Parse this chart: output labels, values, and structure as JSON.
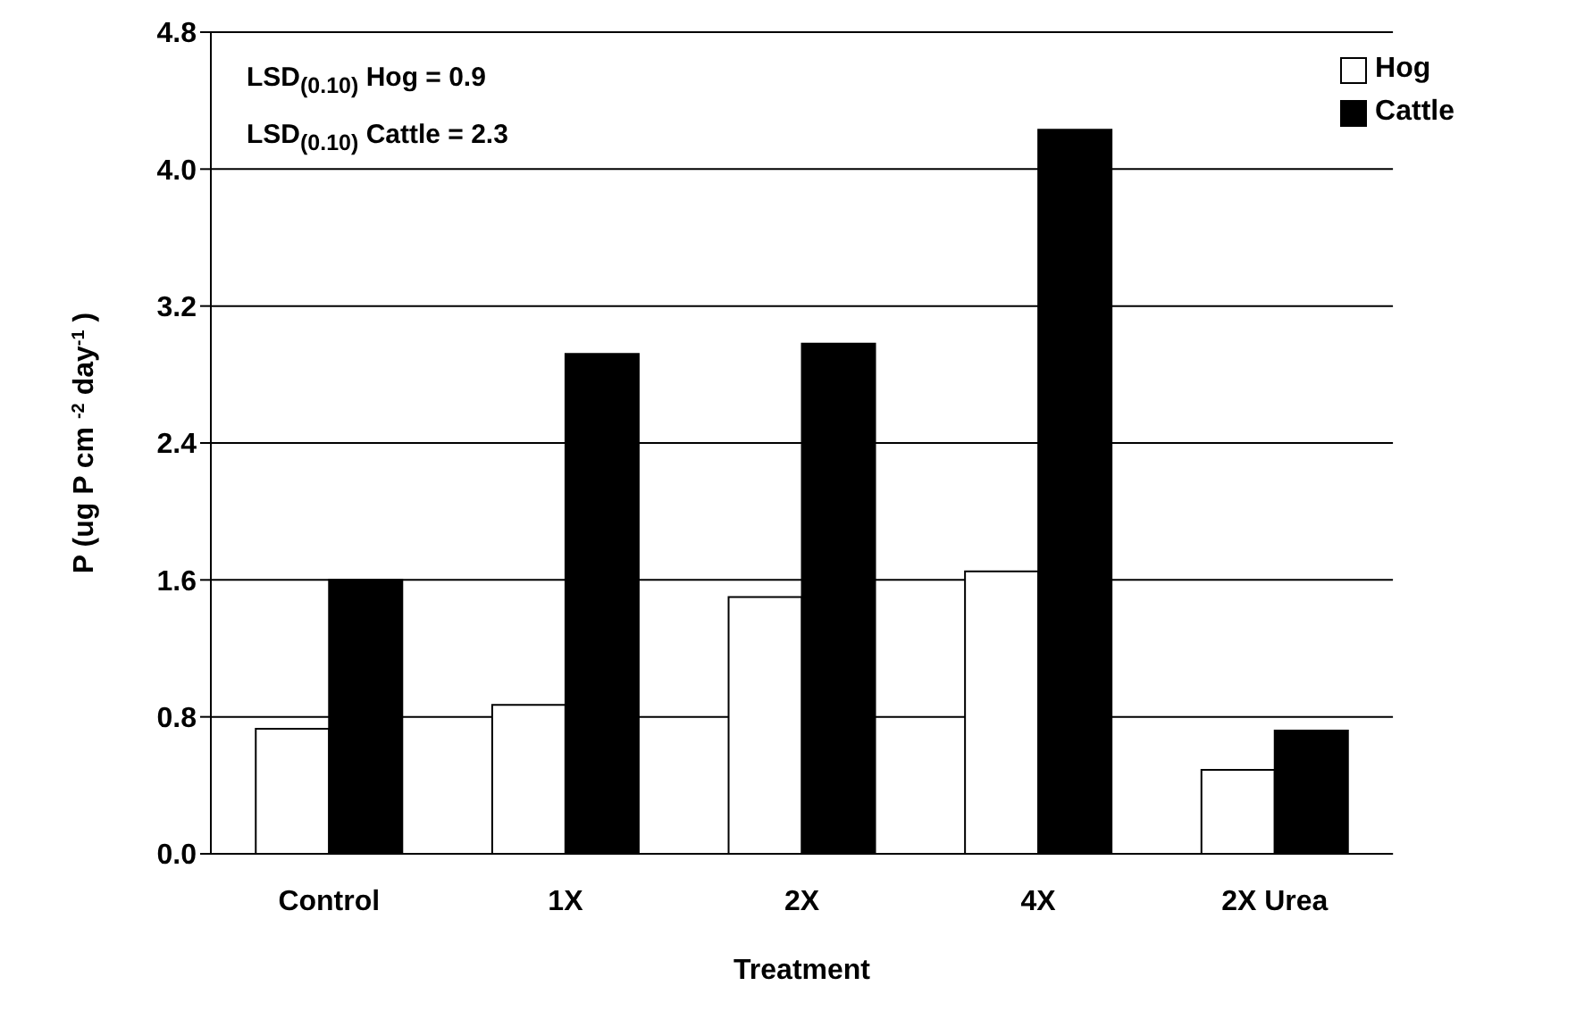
{
  "chart_data": {
    "type": "bar",
    "xlabel": "Treatment",
    "ylabel": "P (ug P cm $^{-2}$ day$^{-1}$ )",
    "categories": [
      "Control",
      "1X",
      "2X",
      "4X",
      "2X Urea"
    ],
    "series": [
      {
        "name": "Hog",
        "color": "#ffffff",
        "values": [
          0.73,
          0.87,
          1.5,
          1.65,
          0.49
        ]
      },
      {
        "name": "Cattle",
        "color": "#000000",
        "values": [
          1.6,
          2.92,
          2.98,
          4.23,
          0.72
        ]
      }
    ],
    "ylim": [
      0,
      4.8
    ],
    "yticks": [
      {
        "value": 0,
        "label": "0.0"
      },
      {
        "value": 0.8,
        "label": "0.8"
      },
      {
        "value": 1.6,
        "label": "1.6"
      },
      {
        "value": 2.4,
        "label": "2.4"
      },
      {
        "value": 3.2,
        "label": "3.2"
      },
      {
        "value": 4,
        "label": "4.0"
      },
      4.8
    ],
    "grid": "y",
    "legend": "top right",
    "annotations": [
      "LSD$_{(0.10)}$ Hog = 0.9",
      "LSD$_{(0.10)}$ Cattle = 2.3"
    ]
  }
}
